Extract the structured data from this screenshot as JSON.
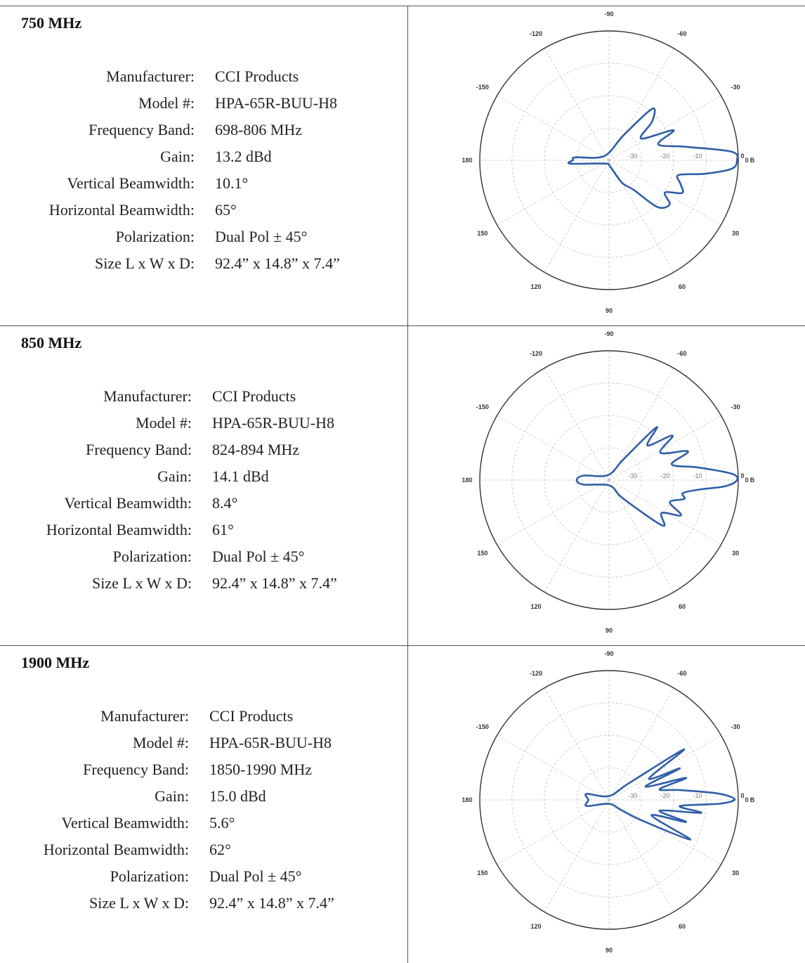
{
  "colors": {
    "pattern": "#2f5fa8",
    "grid": "#cccccc",
    "border": "#555555",
    "outer_circle": "#333333"
  },
  "blocks": [
    {
      "band": "750 MHz",
      "specs": [
        {
          "label": "Manufacturer:",
          "value": "CCI Products"
        },
        {
          "label": "Model #:",
          "value": "HPA-65R-BUU-H8"
        },
        {
          "label": "Frequency Band:",
          "value": "698-806 MHz"
        },
        {
          "label": "Gain:",
          "value": "13.2 dBd"
        },
        {
          "label": "Vertical Beamwidth:",
          "value": "10.1°"
        },
        {
          "label": "Horizontal Beamwidth:",
          "value": "65°"
        },
        {
          "label": "Polarization:",
          "value": "Dual Pol ± 45°"
        },
        {
          "label": "Size L x W x D:",
          "value": "92.4” x 14.8” x 7.4”"
        }
      ],
      "plot": {
        "angle_labels": [
          "-90",
          "-120",
          "-60",
          "-150",
          "-30",
          "180",
          "0",
          "150",
          "30",
          "120",
          "60",
          "90"
        ],
        "ring_labels": [
          "-30",
          "-20",
          "-10",
          "0"
        ],
        "db_label": "B"
      }
    },
    {
      "band": "850 MHz",
      "specs": [
        {
          "label": "Manufacturer:",
          "value": "CCI Products"
        },
        {
          "label": "Model #:",
          "value": "HPA-65R-BUU-H8"
        },
        {
          "label": "Frequency Band:",
          "value": "824-894 MHz"
        },
        {
          "label": "Gain:",
          "value": "14.1 dBd"
        },
        {
          "label": "Vertical Beamwidth:",
          "value": "8.4°"
        },
        {
          "label": "Horizontal Beamwidth:",
          "value": "61°"
        },
        {
          "label": "Polarization:",
          "value": "Dual Pol ± 45°"
        },
        {
          "label": "Size L x W x D:",
          "value": "92.4” x 14.8” x 7.4”"
        }
      ],
      "plot": {
        "angle_labels": [
          "-90",
          "-120",
          "-60",
          "-150",
          "-30",
          "180",
          "0",
          "150",
          "30",
          "120",
          "60",
          "90"
        ],
        "ring_labels": [
          "-30",
          "-20",
          "-10",
          "0"
        ],
        "db_label": "B"
      }
    },
    {
      "band": "1900 MHz",
      "specs": [
        {
          "label": "Manufacturer:",
          "value": "CCI Products"
        },
        {
          "label": "Model #:",
          "value": "HPA-65R-BUU-H8"
        },
        {
          "label": "Frequency Band:",
          "value": "1850-1990 MHz"
        },
        {
          "label": "Gain:",
          "value": "15.0 dBd"
        },
        {
          "label": "Vertical Beamwidth:",
          "value": "5.6°"
        },
        {
          "label": "Horizontal Beamwidth:",
          "value": "62°"
        },
        {
          "label": "Polarization:",
          "value": "Dual Pol ± 45°"
        },
        {
          "label": "Size L x W x D:",
          "value": "92.4” x 14.8” x 7.4”"
        }
      ],
      "plot": {
        "angle_labels": [
          "-90",
          "-120",
          "-60",
          "-150",
          "-30",
          "180",
          "0",
          "150",
          "30",
          "120",
          "60",
          "90"
        ],
        "ring_labels": [
          "-30",
          "-20",
          "-10",
          "0"
        ],
        "db_label": "B"
      }
    }
  ]
}
